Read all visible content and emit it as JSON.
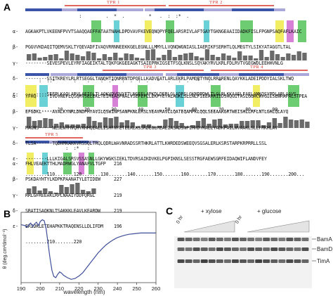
{
  "panels": {
    "a": "A",
    "b": "B",
    "c": "C"
  },
  "alignment": {
    "species_labels": [
      "α-",
      "β-",
      "γ-",
      "δ-",
      "ε-"
    ],
    "tpr_labels": [
      "TPR 1",
      "TPR 2",
      "TPR 3",
      "TPR 4",
      "TPR 5"
    ],
    "block1": {
      "sym": "                    :         .  *  .         *   .  :  :*  .",
      "rows": [
        "AGKAKPTLVKEENFPVVTSAAQQAEFFATAATNAHLDPDVAVFKEVEQNQPYFQELARSRIVLAFTGAYTGKNGEAAIIDADKFISLFPGNPSAQFAFLKAIC",
        "PGGVVKDAQITQEMVSKLTYQEVADFIVAQVRRNNEEKKGELEGNLLLMMYLLVQNQWGNIASLIAERIKFSERHTLQLMEGTYLSIKYATAGGTLTAL",
        "--------SEVESPEVLEYRFIAGEIKTALTQKFGKGEEAGKTSAIEPRKIGSETFSQLKNSLSQYAKYRVLKRLFDLRVTVGEGWDLEEHHVNLG",
        "--------SSITKREYLRLRTSEGGLTANQHTIQNRRNTDPQELLKADVEATLARLEKRLPAMQRTYNQLRRARENLQAYKKLADEIPDDYIALSKLTWQ",
        "--------SEEPLKAQLARVLAEIGLTLAQKVDVQVYFTLNGEELAPKDLDERLGLADRSLGKNDPDWLTLGLRLKKAAELFAELAMKQSYPDLARLAAVS"
      ],
      "ruler": "............10........20........30........40........50........60........70........80........90.."
    },
    "block2": {
      "sym": "     :  :.*       :    .    :  .*   :  .  :  .   *   .   :  .   *   .   *",
      "rows": [
        "YFHQ-----IVDVNEFLQSQRVSELEKLTEIMEAQPNALVSEFEFLLEKPYEYALAGKLSLLNLFIEEARRIIDSHQGITASLGGHCWVGIESEWRAFALSTPEA",
        "EFGDKL----AVALKYNRLDNDPHYAVILQSWINPSANPKNLERSLVEAVRAVLLQATEQAMPKLQQLSEEAAKGRTWEISHLLRFLNTLGHLQLAYQ",
        "RAGNS-----NLSLNYMVQHYKHHQEALLISHFNYETEEKLKSSRDEGLREALIASADSNFIHRDYKALEYADKPAILWVAAKLSLLFRKHLAV",
        "TLSA------TQDHMKAKKVRSSQLTRQLQDRLWAVNRADSSRTHKRLATTLKHRDEDSWEEQVSGSALERLKSRSTARPKRPRRLLSSL",
        "--------LLLKIGALSRSVSSASNLLGKYWGKSIEKLTDVRSAIKDVKELPGPIKNSLSESSTRGFAEWSGRFEIDAQWIFLANDVFEY"
      ],
      "ruler": "........110.......120.......130.......140.......150.......160.......170.......180.......190.......200..."
    },
    "block3": {
      "sym": "               :  :*   :",
      "rows": [
        "FHLVEAEKTTHLMADRWGLYANAFVLTGFP",
        "PSKDAYHTYLKDPKPAANATYLETIDEW",
        "RRLGFREEAKLRPLNAAIYDDFQRGL",
        "SRATISAQKNLTSAKKKLEAVLKEARDW",
        "ERIDKLETEHAPKKTRAQENSLLDLIFDM"
      ],
      "counts": [
        "216",
        "227",
        "219",
        "219",
        "196"
      ],
      "ruler": "........210.......220"
    }
  },
  "cd_chart": {
    "type": "line",
    "xlabel": "wavelength (nm)",
    "ylabel": "θ (deg.cm²dmol⁻¹)",
    "xlim": [
      190,
      260
    ],
    "x_ticks": [
      "190",
      "200",
      "210",
      "220",
      "230",
      "240",
      "250",
      "260"
    ],
    "x": [
      190,
      192,
      193,
      194,
      195,
      196,
      197,
      198,
      199,
      200,
      201,
      202,
      203,
      204,
      205,
      206,
      207,
      208,
      209,
      210,
      211,
      212,
      214,
      216,
      218,
      220,
      222,
      224,
      226,
      228,
      230,
      232,
      234,
      236,
      238,
      240,
      242,
      244,
      246,
      248,
      250,
      252,
      254,
      256,
      258,
      260
    ],
    "y": [
      0.2,
      0.18,
      0.14,
      0.2,
      0.24,
      0.16,
      0.22,
      0.26,
      0.18,
      0.28,
      0.32,
      0.3,
      0.1,
      -0.25,
      -0.6,
      -0.9,
      -1.05,
      -1.08,
      -1.0,
      -0.94,
      -0.97,
      -1.02,
      -1.08,
      -1.12,
      -1.1,
      -1.04,
      -0.96,
      -0.84,
      -0.72,
      -0.6,
      -0.48,
      -0.38,
      -0.29,
      -0.22,
      -0.16,
      -0.11,
      -0.08,
      -0.05,
      -0.03,
      -0.02,
      -0.01,
      0.0,
      0.0,
      0.0,
      0.0,
      0.0
    ],
    "color": "#3f4f9a"
  },
  "blot": {
    "conditions": [
      "+ xylose",
      "+ glucose"
    ],
    "time_labels": [
      "0 hr",
      "0 hr"
    ],
    "bands": [
      "BamA",
      "BamD",
      "TimA"
    ]
  },
  "colors": {
    "tpr_red": "#d9342b",
    "bar_blue": "#3a55a8",
    "bar_lilac": "#a9a8d8",
    "conservation": "#6a6a6a",
    "green": "#54c45a",
    "cyan": "#51c9d1",
    "yellow": "#f0ec4a",
    "magenta": "#d06bd0"
  }
}
